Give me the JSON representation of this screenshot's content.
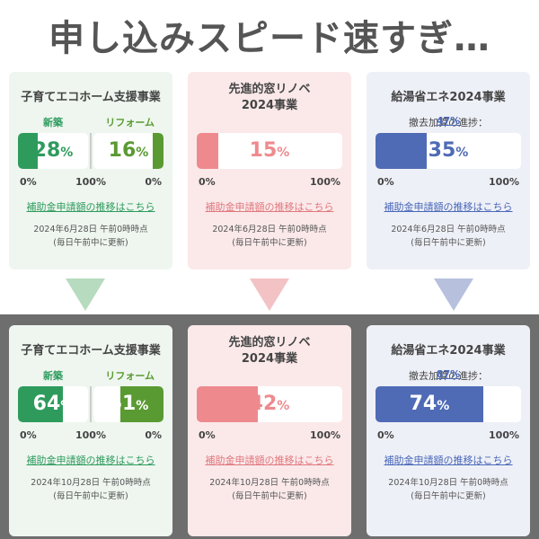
{
  "headline": "申し込みスピード速すぎ…",
  "cards": [
    {
      "title": "子育てエコホーム支援事業",
      "label_left": "新築",
      "label_right": "リフォーム",
      "link": "補助金申請額の推移はこちら"
    },
    {
      "title_line1": "先進的窓リノベ",
      "title_line2": "2024事業",
      "link": "補助金申請額の推移はこちら"
    },
    {
      "title": "給湯省エネ2024事業",
      "progress_label": "撤去加算の進捗：",
      "link": "補助金申請額の推移はこちら"
    }
  ],
  "before": {
    "eco_new": 28,
    "eco_reform": 16,
    "window": 15,
    "water": 35,
    "removal": "47%",
    "date": "2024年6月28日 午前0時時点",
    "note": "(毎日午前中に更新)"
  },
  "after": {
    "eco_new": 64,
    "eco_reform": 61,
    "window": 42,
    "water": 74,
    "removal": "87%",
    "date": "2024年10月28日 午前0時時点",
    "note": "(毎日午前中に更新)"
  },
  "scale": {
    "zero": "0%",
    "hundred": "100%"
  },
  "pct_unit": "%",
  "colors": {
    "green": "#2e9b5d",
    "olive": "#5a9a32",
    "pink": "#ee8a8e",
    "blue": "#4f6bb5"
  }
}
